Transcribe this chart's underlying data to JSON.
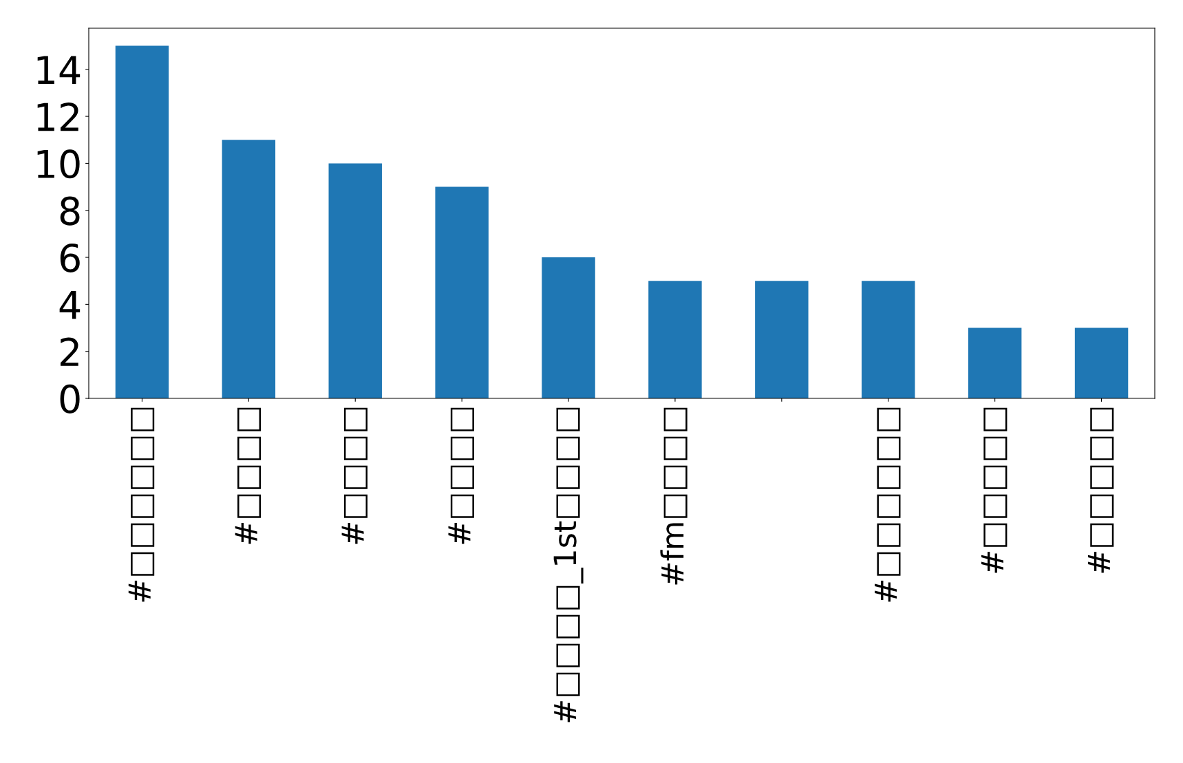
{
  "chart_data": {
    "type": "bar",
    "categories": [
      "#□□□□□□",
      "#□□□□",
      "#□□□□",
      "#□□□□",
      "#□□□□_1st□□□□",
      "#fm□□□□",
      null,
      "#□□□□□□",
      "#□□□□□",
      "#□□□□□"
    ],
    "values": [
      15,
      11,
      10,
      9,
      6,
      5,
      5,
      5,
      3,
      3
    ],
    "color": "#1f77b4",
    "ylim": [
      0,
      15.75
    ],
    "yticks": [
      0,
      2,
      4,
      6,
      8,
      10,
      12,
      14
    ],
    "grid": false
  }
}
